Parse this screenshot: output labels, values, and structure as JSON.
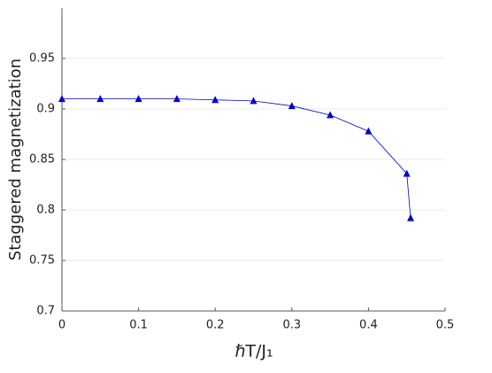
{
  "chart_data": {
    "type": "line",
    "xlabel": "ℏT/J₁",
    "ylabel": "Staggered magnetization",
    "x": [
      0,
      0.05,
      0.1,
      0.15,
      0.2,
      0.25,
      0.3,
      0.35,
      0.4,
      0.45,
      0.455
    ],
    "series": [
      {
        "color": "#0000cc",
        "marker": "triangle",
        "values": [
          0.91,
          0.91,
          0.91,
          0.91,
          0.909,
          0.908,
          0.903,
          0.894,
          0.878,
          0.836,
          0.792
        ]
      }
    ],
    "xlim": [
      0,
      0.5
    ],
    "xticks": [
      0,
      0.1,
      0.2,
      0.3,
      0.4,
      0.5
    ],
    "ylim": [
      0.7,
      1.0
    ],
    "yticks": [
      0.7,
      0.75,
      0.8,
      0.85,
      0.9,
      0.95
    ],
    "grid": true
  }
}
